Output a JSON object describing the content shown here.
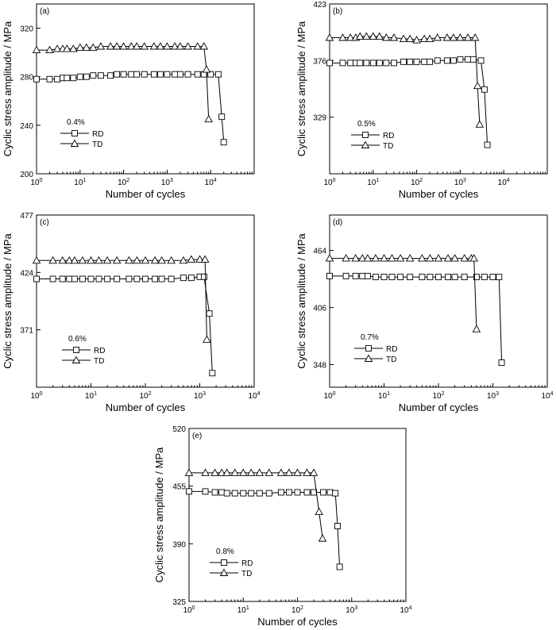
{
  "chart_data": [
    {
      "panel": "(a)",
      "type": "line",
      "xscale": "log",
      "xlabel": "Number of cycles",
      "ylabel": "Cyclic stress amplitude / MPa",
      "xlim": [
        1,
        100000
      ],
      "ylim": [
        200,
        340
      ],
      "xticks": [
        1,
        10,
        100,
        1000,
        10000
      ],
      "xtick_labels": [
        "10⁰",
        "10¹",
        "10²",
        "10³",
        "10⁴"
      ],
      "yticks": [
        200,
        240,
        280,
        320
      ],
      "ytick_labels": [
        "200",
        "240",
        "280",
        "320"
      ],
      "legend_title": "0.4%",
      "series": [
        {
          "name": "RD",
          "marker": "square",
          "points": [
            [
              1,
              278
            ],
            [
              2,
              278
            ],
            [
              3,
              278
            ],
            [
              4,
              279
            ],
            [
              5,
              279
            ],
            [
              7,
              279
            ],
            [
              10,
              280
            ],
            [
              14,
              280
            ],
            [
              20,
              281
            ],
            [
              30,
              281
            ],
            [
              50,
              281
            ],
            [
              70,
              282
            ],
            [
              100,
              282
            ],
            [
              150,
              282
            ],
            [
              200,
              282
            ],
            [
              300,
              282
            ],
            [
              500,
              282
            ],
            [
              700,
              282
            ],
            [
              1000,
              282
            ],
            [
              1500,
              282
            ],
            [
              2000,
              282
            ],
            [
              3000,
              282
            ],
            [
              5000,
              282
            ],
            [
              7000,
              282
            ],
            [
              10000,
              282
            ],
            [
              15000,
              282
            ],
            [
              18000,
              247
            ],
            [
              20000,
              226
            ]
          ]
        },
        {
          "name": "TD",
          "marker": "triangle",
          "points": [
            [
              1,
              302
            ],
            [
              2,
              302
            ],
            [
              3,
              303
            ],
            [
              4,
              303
            ],
            [
              5,
              303
            ],
            [
              7,
              303
            ],
            [
              10,
              304
            ],
            [
              14,
              304
            ],
            [
              20,
              304
            ],
            [
              30,
              305
            ],
            [
              50,
              305
            ],
            [
              70,
              305
            ],
            [
              100,
              305
            ],
            [
              150,
              305
            ],
            [
              200,
              305
            ],
            [
              300,
              305
            ],
            [
              500,
              305
            ],
            [
              700,
              305
            ],
            [
              1000,
              305
            ],
            [
              1500,
              305
            ],
            [
              2000,
              305
            ],
            [
              3000,
              305
            ],
            [
              5000,
              305
            ],
            [
              7000,
              305
            ],
            [
              8000,
              286
            ],
            [
              9000,
              245
            ]
          ]
        }
      ]
    },
    {
      "panel": "(b)",
      "type": "line",
      "xscale": "log",
      "xlabel": "Number of cycles",
      "ylabel": "Cyclic stress amplitude / MPa",
      "xlim": [
        1,
        100000
      ],
      "ylim": [
        282,
        423
      ],
      "xticks": [
        1,
        10,
        100,
        1000,
        10000
      ],
      "xtick_labels": [
        "10⁰",
        "10¹",
        "10²",
        "10³",
        "10⁴"
      ],
      "yticks": [
        329,
        376,
        423
      ],
      "ytick_labels": [
        "329",
        "376",
        "423"
      ],
      "legend_title": "0.5%",
      "series": [
        {
          "name": "RD",
          "marker": "square",
          "points": [
            [
              1,
              374
            ],
            [
              2,
              374
            ],
            [
              3,
              374
            ],
            [
              4,
              374
            ],
            [
              5,
              374
            ],
            [
              7,
              374
            ],
            [
              10,
              374
            ],
            [
              14,
              374
            ],
            [
              20,
              374
            ],
            [
              30,
              374
            ],
            [
              50,
              375
            ],
            [
              70,
              375
            ],
            [
              100,
              375
            ],
            [
              150,
              375
            ],
            [
              200,
              375
            ],
            [
              300,
              376
            ],
            [
              500,
              376
            ],
            [
              700,
              376
            ],
            [
              1000,
              377
            ],
            [
              1500,
              377
            ],
            [
              2000,
              377
            ],
            [
              3000,
              376
            ],
            [
              3600,
              352
            ],
            [
              4200,
              306
            ]
          ]
        },
        {
          "name": "TD",
          "marker": "triangle",
          "points": [
            [
              1,
              395
            ],
            [
              2,
              395
            ],
            [
              3,
              395
            ],
            [
              4,
              395
            ],
            [
              5,
              396
            ],
            [
              7,
              396
            ],
            [
              10,
              396
            ],
            [
              14,
              396
            ],
            [
              20,
              395
            ],
            [
              30,
              395
            ],
            [
              50,
              394
            ],
            [
              70,
              394
            ],
            [
              100,
              393
            ],
            [
              150,
              394
            ],
            [
              200,
              394
            ],
            [
              300,
              395
            ],
            [
              500,
              395
            ],
            [
              700,
              395
            ],
            [
              1000,
              395
            ],
            [
              1500,
              395
            ],
            [
              2200,
              395
            ],
            [
              2500,
              355
            ],
            [
              2800,
              323
            ]
          ]
        }
      ]
    },
    {
      "panel": "(c)",
      "type": "line",
      "xscale": "log",
      "xlabel": "Number of cycles",
      "ylabel": "Cyclic stress amplitude / MPa",
      "xlim": [
        1,
        10000
      ],
      "ylim": [
        318,
        477
      ],
      "xticks": [
        1,
        10,
        100,
        1000,
        10000
      ],
      "xtick_labels": [
        "10⁰",
        "10¹",
        "10²",
        "10³",
        "10⁴"
      ],
      "yticks": [
        371,
        424,
        477
      ],
      "ytick_labels": [
        "371",
        "424",
        "477"
      ],
      "legend_title": "0.6%",
      "series": [
        {
          "name": "RD",
          "marker": "square",
          "points": [
            [
              1,
              418
            ],
            [
              2,
              418
            ],
            [
              3,
              418
            ],
            [
              4,
              418
            ],
            [
              5,
              418
            ],
            [
              7,
              418
            ],
            [
              10,
              418
            ],
            [
              14,
              418
            ],
            [
              20,
              418
            ],
            [
              30,
              418
            ],
            [
              50,
              418
            ],
            [
              70,
              418
            ],
            [
              100,
              418
            ],
            [
              150,
              418
            ],
            [
              200,
              418
            ],
            [
              300,
              418
            ],
            [
              500,
              419
            ],
            [
              700,
              419
            ],
            [
              1000,
              420
            ],
            [
              1200,
              420
            ],
            [
              1500,
              386
            ],
            [
              1700,
              331
            ]
          ]
        },
        {
          "name": "TD",
          "marker": "triangle",
          "points": [
            [
              1,
              435
            ],
            [
              2,
              435
            ],
            [
              3,
              435
            ],
            [
              4,
              435
            ],
            [
              5,
              435
            ],
            [
              7,
              435
            ],
            [
              10,
              435
            ],
            [
              14,
              435
            ],
            [
              20,
              435
            ],
            [
              30,
              435
            ],
            [
              50,
              435
            ],
            [
              70,
              435
            ],
            [
              100,
              435
            ],
            [
              150,
              435
            ],
            [
              200,
              435
            ],
            [
              300,
              435
            ],
            [
              500,
              435
            ],
            [
              700,
              436
            ],
            [
              1000,
              436
            ],
            [
              1250,
              436
            ],
            [
              1350,
              362
            ]
          ]
        }
      ]
    },
    {
      "panel": "(d)",
      "type": "line",
      "xscale": "log",
      "xlabel": "Number of cycles",
      "ylabel": "Cyclic stress amplitude / MPa",
      "xlim": [
        1,
        10000
      ],
      "ylim": [
        325,
        500
      ],
      "xticks": [
        1,
        10,
        100,
        1000,
        10000
      ],
      "xtick_labels": [
        "10⁰",
        "10¹",
        "10²",
        "10³",
        "10⁴"
      ],
      "yticks": [
        348,
        406,
        464
      ],
      "ytick_labels": [
        "348",
        "406",
        "464"
      ],
      "legend_title": "0.7%",
      "series": [
        {
          "name": "RD",
          "marker": "square",
          "points": [
            [
              1,
              438
            ],
            [
              2,
              438
            ],
            [
              3,
              438
            ],
            [
              4,
              438
            ],
            [
              5,
              438
            ],
            [
              7,
              437
            ],
            [
              10,
              437
            ],
            [
              14,
              437
            ],
            [
              20,
              437
            ],
            [
              30,
              437
            ],
            [
              50,
              437
            ],
            [
              70,
              437
            ],
            [
              100,
              437
            ],
            [
              150,
              437
            ],
            [
              200,
              437
            ],
            [
              300,
              437
            ],
            [
              500,
              437
            ],
            [
              700,
              437
            ],
            [
              1000,
              437
            ],
            [
              1300,
              437
            ],
            [
              1450,
              350
            ]
          ]
        },
        {
          "name": "TD",
          "marker": "triangle",
          "points": [
            [
              1,
              456
            ],
            [
              2,
              456
            ],
            [
              3,
              456
            ],
            [
              4,
              456
            ],
            [
              5,
              456
            ],
            [
              7,
              456
            ],
            [
              10,
              456
            ],
            [
              14,
              456
            ],
            [
              20,
              456
            ],
            [
              30,
              456
            ],
            [
              50,
              456
            ],
            [
              70,
              456
            ],
            [
              100,
              456
            ],
            [
              150,
              456
            ],
            [
              200,
              456
            ],
            [
              300,
              456
            ],
            [
              400,
              456
            ],
            [
              450,
              456
            ],
            [
              500,
              384
            ]
          ]
        }
      ]
    },
    {
      "panel": "(e)",
      "type": "line",
      "xscale": "log",
      "xlabel": "Number of cycles",
      "ylabel": "Cyclic stress amplitude / MPa",
      "xlim": [
        1,
        10000
      ],
      "ylim": [
        325,
        520
      ],
      "xticks": [
        1,
        10,
        100,
        1000,
        10000
      ],
      "xtick_labels": [
        "10⁰",
        "10¹",
        "10²",
        "10³",
        "10⁴"
      ],
      "yticks": [
        325,
        390,
        455,
        520
      ],
      "ytick_labels": [
        "325",
        "390",
        "455",
        "520"
      ],
      "legend_title": "0.8%",
      "series": [
        {
          "name": "RD",
          "marker": "square",
          "points": [
            [
              1,
              449
            ],
            [
              2,
              449
            ],
            [
              3,
              448
            ],
            [
              4,
              448
            ],
            [
              5,
              447
            ],
            [
              7,
              447
            ],
            [
              10,
              447
            ],
            [
              14,
              447
            ],
            [
              20,
              447
            ],
            [
              30,
              447
            ],
            [
              50,
              448
            ],
            [
              70,
              448
            ],
            [
              100,
              448
            ],
            [
              150,
              448
            ],
            [
              200,
              448
            ],
            [
              300,
              448
            ],
            [
              400,
              448
            ],
            [
              500,
              447
            ],
            [
              550,
              410
            ],
            [
              600,
              364
            ]
          ]
        },
        {
          "name": "TD",
          "marker": "triangle",
          "points": [
            [
              1,
              470
            ],
            [
              2,
              470
            ],
            [
              3,
              470
            ],
            [
              4,
              470
            ],
            [
              5,
              470
            ],
            [
              7,
              470
            ],
            [
              10,
              470
            ],
            [
              14,
              470
            ],
            [
              20,
              470
            ],
            [
              30,
              470
            ],
            [
              50,
              470
            ],
            [
              70,
              470
            ],
            [
              100,
              470
            ],
            [
              150,
              470
            ],
            [
              200,
              470
            ],
            [
              250,
              426
            ],
            [
              290,
              396
            ]
          ]
        }
      ]
    }
  ]
}
